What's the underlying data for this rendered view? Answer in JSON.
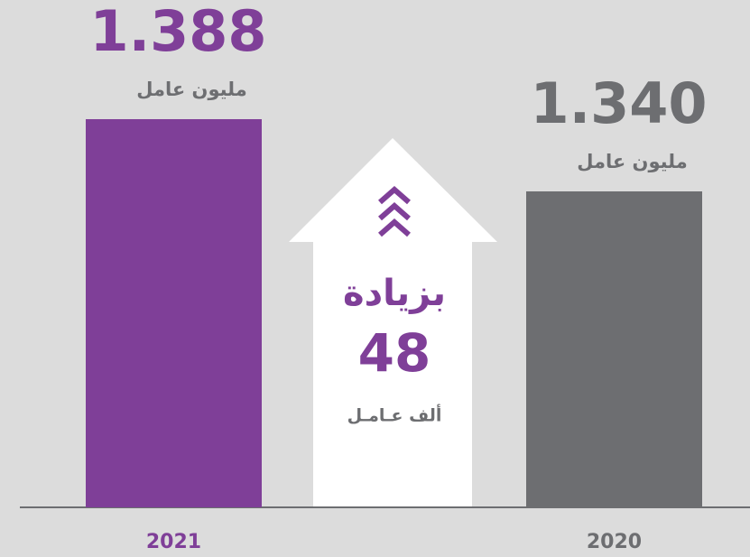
{
  "chart_data": {
    "type": "bar",
    "categories": [
      "2021",
      "2020"
    ],
    "values": [
      1.388,
      1.34
    ],
    "value_labels": [
      "1.388",
      "1.340"
    ],
    "value_unit": "مليون عامل",
    "colors": [
      "#7f3f98",
      "#6d6e71"
    ],
    "ylim": [
      1.13,
      1.4
    ],
    "annotation": {
      "label": "بزيادة",
      "value": 48,
      "unit": "ألف عـامـل",
      "color": "#7f3f98"
    }
  }
}
